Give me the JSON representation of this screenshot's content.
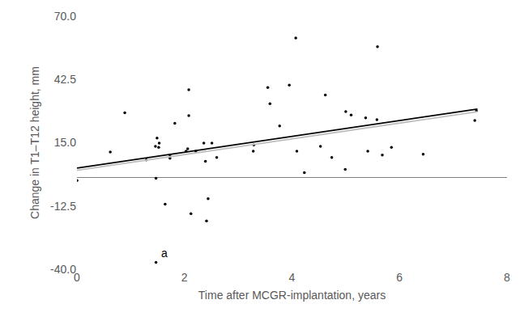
{
  "chart_data": {
    "type": "scatter",
    "x_label": "Time after MCGR-implantation, years",
    "y_label": "Change in T1–T12 height, mm",
    "xlim": [
      0,
      8
    ],
    "xticks": [
      0,
      2,
      4,
      6,
      8
    ],
    "ylim": [
      -40,
      70
    ],
    "yticks": [
      {
        "value": -40,
        "label": "-40.0"
      },
      -12.5,
      {
        "value": 15,
        "label": "15.0"
      },
      42.5,
      {
        "value": 70,
        "label": "70.0"
      }
    ],
    "grid": false,
    "series": [
      {
        "type": "scatter",
        "color": "#000000",
        "marker": "circle",
        "x": [
          0,
          0.62,
          0.89,
          1.29,
          1.46,
          1.49,
          1.52,
          1.53,
          1.47,
          1.47,
          1.64,
          1.73,
          1.73,
          1.82,
          2.03,
          2.06,
          2.08,
          2.08,
          2.12,
          2.21,
          2.36,
          2.39,
          2.41,
          2.44,
          2.51,
          2.6,
          3.28,
          3.29,
          3.55,
          3.59,
          3.77,
          3.95,
          4.09,
          4.07,
          4.23,
          4.53,
          4.62,
          4.74,
          4.99,
          5.0,
          5.1,
          5.37,
          5.41,
          5.58,
          5.59,
          5.68,
          5.85,
          6.44,
          7.4,
          7.43
        ],
        "values": [
          -1.4,
          11,
          28,
          7.5,
          13.4,
          17,
          13,
          14.8,
          -0.5,
          -37,
          -11.7,
          9.6,
          8.2,
          23.4,
          11.3,
          12.4,
          26.8,
          38,
          -15.8,
          11.3,
          14.8,
          6.9,
          -19,
          -9.3,
          14.8,
          8.6,
          11.3,
          14,
          39,
          32,
          22.3,
          40,
          11.3,
          60.5,
          2,
          13.4,
          35.7,
          8.6,
          3.4,
          28.5,
          27,
          25.8,
          11.3,
          25,
          56.7,
          9.6,
          13,
          10,
          24.7,
          28.9
        ]
      },
      {
        "type": "line",
        "color": "#bfbfbf",
        "line_style": "solid",
        "x": [
          0,
          7.45
        ],
        "values": [
          3,
          28.5
        ]
      },
      {
        "type": "line",
        "color": "#000000",
        "line_style": "solid",
        "x": [
          0,
          7.45
        ],
        "values": [
          4,
          29.6
        ]
      }
    ],
    "annotations": [
      {
        "text": "a",
        "x": 1.62,
        "y": -33
      }
    ]
  }
}
